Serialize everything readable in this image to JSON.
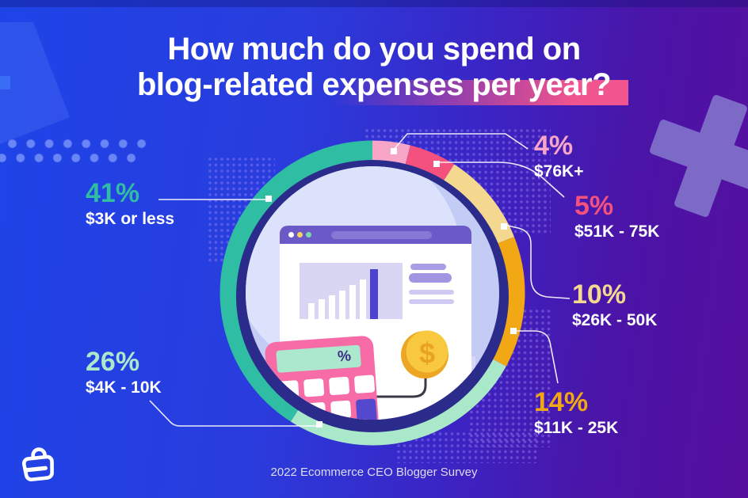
{
  "title": {
    "line1": "How much do you spend on",
    "line2": "blog-related expenses per year?"
  },
  "footer": {
    "source": "2022 Ecommerce CEO Blogger Survey"
  },
  "branding": {
    "logo_icon": "shopping-bag-icon"
  },
  "decor": {
    "plus_icon_color": "#8172CB",
    "title_highlight_color": "#F0558F"
  },
  "chart_data": {
    "type": "pie",
    "donut": true,
    "title": "How much do you spend on blog-related expenses per year?",
    "start_angle_deg": 0,
    "direction": "clockwise",
    "center": {
      "illustration": "browser-analytics-calculator-coin"
    },
    "segments": [
      {
        "pct_label": "4%",
        "value": 4,
        "label": "$76K+",
        "color": "#F7A6C8"
      },
      {
        "pct_label": "5%",
        "value": 5,
        "label": "$51K - 75K",
        "color": "#F4517E"
      },
      {
        "pct_label": "10%",
        "value": 10,
        "label": "$26K - 50K",
        "color": "#F4D88F"
      },
      {
        "pct_label": "14%",
        "value": 14,
        "label": "$11K - 25K",
        "color": "#F2A714"
      },
      {
        "pct_label": "26%",
        "value": 26,
        "label": "$4K - 10K",
        "color": "#A9E8C9"
      },
      {
        "pct_label": "41%",
        "value": 41,
        "label": "$3K or less",
        "color": "#2FBDA3"
      }
    ],
    "ring": {
      "outer_color": "#2A2B8A",
      "center_fill": "#C3CCF4"
    }
  }
}
